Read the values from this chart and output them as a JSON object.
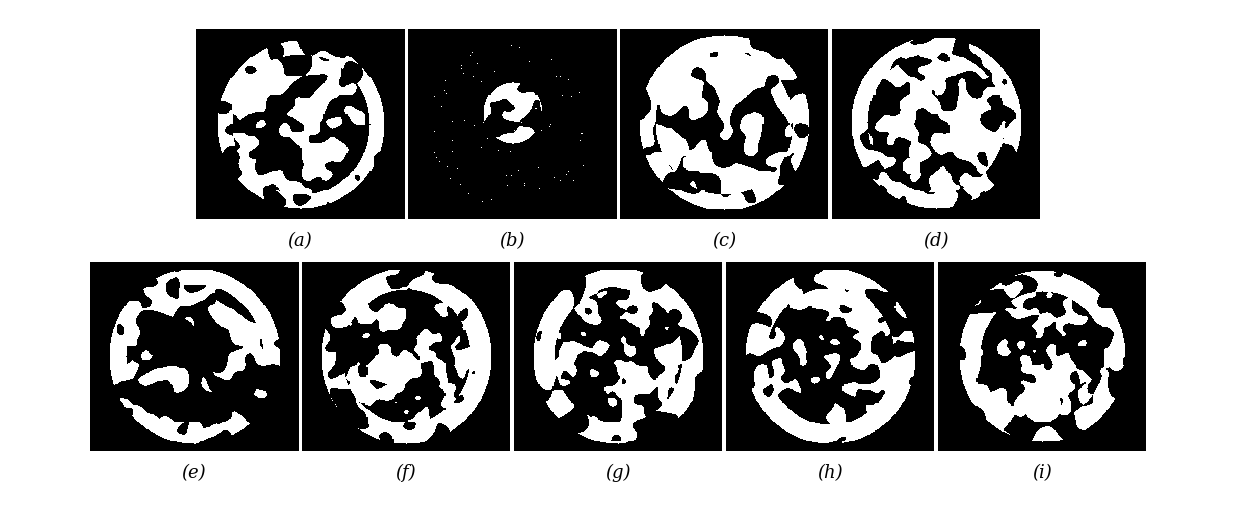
{
  "labels": [
    "(a)",
    "(b)",
    "(c)",
    "(d)",
    "(e)",
    "(f)",
    "(g)",
    "(h)",
    "(i)"
  ],
  "row1_count": 4,
  "row2_count": 5,
  "bg_color": "#ffffff",
  "label_fontsize": 13,
  "image_size": 200
}
